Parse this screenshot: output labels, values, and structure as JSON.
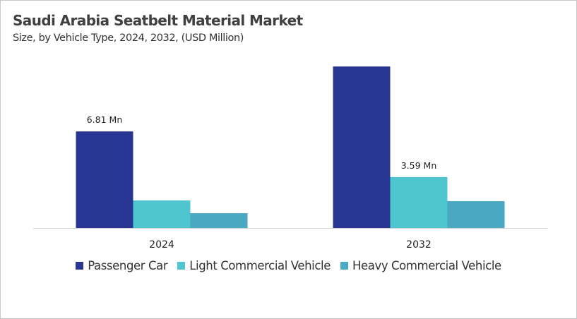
{
  "chart_data": {
    "type": "bar",
    "title": "Saudi Arabia Seatbelt Material Market",
    "subtitle": "Size, by Vehicle Type, 2024, 2032, (USD Million)",
    "xlabel": "",
    "ylabel": "",
    "categories": [
      "2024",
      "2032"
    ],
    "series": [
      {
        "name": "Passenger Car",
        "values": [
          6.81,
          11.39
        ],
        "color": "#283593",
        "labels": [
          "6.81 Mn",
          ""
        ]
      },
      {
        "name": "Light Commercial Vehicle",
        "values": [
          1.94,
          3.59
        ],
        "color": "#4FC5D0",
        "labels": [
          "",
          "3.59 Mn"
        ]
      },
      {
        "name": "Heavy Commercial Vehicle",
        "values": [
          1.04,
          1.89
        ],
        "color": "#4AA8C2",
        "labels": [
          "",
          ""
        ]
      }
    ],
    "ylim": [
      0,
      11.8
    ],
    "grid": false,
    "legend": "bottom"
  }
}
